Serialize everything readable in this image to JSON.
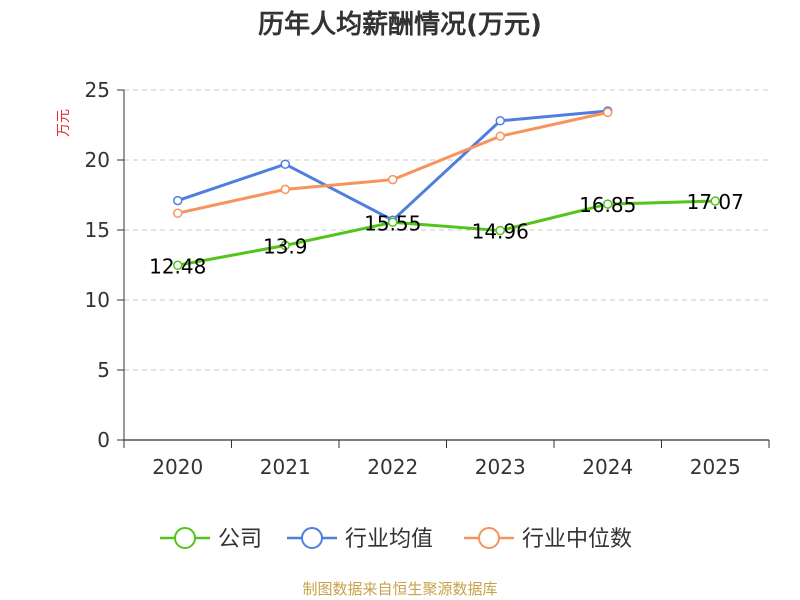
{
  "chart_data": {
    "type": "line",
    "title": "历年人均薪酬情况(万元)",
    "ylabel": "万元",
    "ylim": [
      0,
      25
    ],
    "yticks": [
      0,
      5,
      10,
      15,
      20,
      25
    ],
    "categories": [
      "2020",
      "2021",
      "2022",
      "2023",
      "2024",
      "2025"
    ],
    "grid": true,
    "legend_position": "bottom",
    "series": [
      {
        "name": "公司",
        "color": "#52c41a",
        "values": [
          12.48,
          13.9,
          15.55,
          14.96,
          16.85,
          17.07
        ],
        "labels": [
          "12.48",
          "13.9",
          "15.55",
          "14.96",
          "16.85",
          "17.07"
        ]
      },
      {
        "name": "行业均值",
        "color": "#4e7fe0",
        "values": [
          17.1,
          19.7,
          15.7,
          22.8,
          23.5,
          null
        ]
      },
      {
        "name": "行业中位数",
        "color": "#f7935c",
        "values": [
          16.2,
          17.9,
          18.6,
          21.7,
          23.4,
          null
        ]
      }
    ],
    "source": "制图数据来自恒生聚源数据库"
  }
}
